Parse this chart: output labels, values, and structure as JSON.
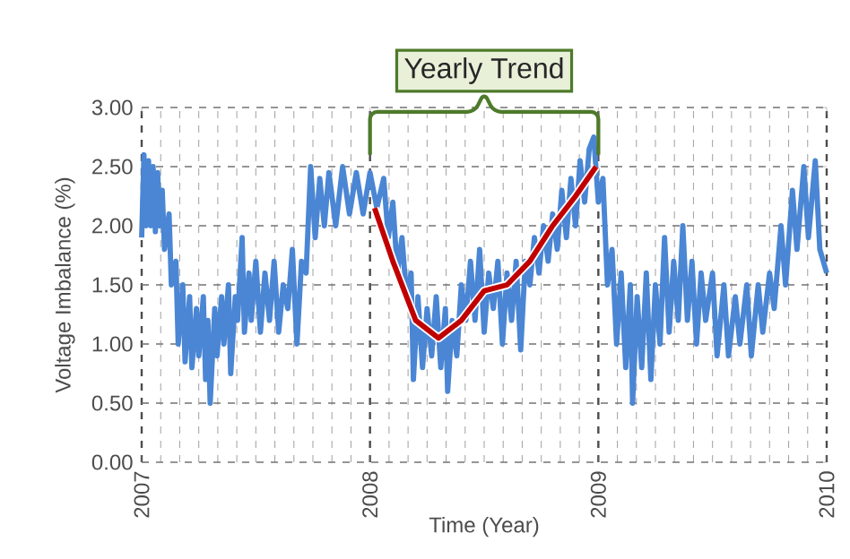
{
  "chart_data": {
    "type": "line",
    "xlabel": "Time (Year)",
    "ylabel": "Voltage Imbalance (%)",
    "xlim": [
      2007,
      2010
    ],
    "xticks": [
      2007,
      2008,
      2009,
      2010
    ],
    "ylim": [
      0,
      3
    ],
    "yticks": [
      {
        "value": 0,
        "label": "0.00"
      },
      {
        "value": 0.5,
        "label": "0.50"
      },
      {
        "value": 1,
        "label": "1.00"
      },
      {
        "value": 1.5,
        "label": "1.50"
      },
      {
        "value": 2,
        "label": "2.00"
      },
      {
        "value": 2.5,
        "label": "2.50"
      },
      {
        "value": 3,
        "label": "3.00"
      }
    ],
    "grid": true,
    "marker": "none",
    "annotations": [
      "Yearly Trend"
    ],
    "series": [
      {
        "color": "#4a86d4",
        "x": [
          2007.0,
          2007.01,
          2007.02,
          2007.03,
          2007.04,
          2007.05,
          2007.06,
          2007.07,
          2007.08,
          2007.09,
          2007.1,
          2007.12,
          2007.13,
          2007.15,
          2007.16,
          2007.18,
          2007.19,
          2007.21,
          2007.22,
          2007.24,
          2007.25,
          2007.27,
          2007.28,
          2007.29,
          2007.3,
          2007.32,
          2007.33,
          2007.35,
          2007.36,
          2007.38,
          2007.39,
          2007.41,
          2007.42,
          2007.44,
          2007.45,
          2007.47,
          2007.48,
          2007.5,
          2007.52,
          2007.54,
          2007.56,
          2007.58,
          2007.6,
          2007.62,
          2007.64,
          2007.66,
          2007.68,
          2007.7,
          2007.72,
          2007.74,
          2007.76,
          2007.78,
          2007.8,
          2007.82,
          2007.85,
          2007.88,
          2007.91,
          2007.94,
          2007.97,
          2008.0,
          2008.03,
          2008.06,
          2008.08,
          2008.1,
          2008.12,
          2008.14,
          2008.16,
          2008.18,
          2008.19,
          2008.21,
          2008.23,
          2008.25,
          2008.27,
          2008.29,
          2008.31,
          2008.33,
          2008.34,
          2008.36,
          2008.38,
          2008.4,
          2008.42,
          2008.44,
          2008.46,
          2008.48,
          2008.5,
          2008.52,
          2008.54,
          2008.56,
          2008.58,
          2008.6,
          2008.62,
          2008.64,
          2008.66,
          2008.68,
          2008.7,
          2008.72,
          2008.74,
          2008.76,
          2008.78,
          2008.8,
          2008.82,
          2008.84,
          2008.86,
          2008.88,
          2008.9,
          2008.92,
          2008.94,
          2008.96,
          2008.98,
          2009.0,
          2009.02,
          2009.04,
          2009.06,
          2009.08,
          2009.1,
          2009.12,
          2009.14,
          2009.15,
          2009.17,
          2009.19,
          2009.21,
          2009.23,
          2009.25,
          2009.27,
          2009.29,
          2009.31,
          2009.33,
          2009.35,
          2009.37,
          2009.39,
          2009.41,
          2009.43,
          2009.45,
          2009.47,
          2009.5,
          2009.52,
          2009.55,
          2009.57,
          2009.6,
          2009.62,
          2009.65,
          2009.67,
          2009.7,
          2009.72,
          2009.75,
          2009.77,
          2009.8,
          2009.82,
          2009.85,
          2009.87,
          2009.9,
          2009.92,
          2009.95,
          2009.97,
          2010.0
        ],
        "values": [
          1.9,
          2.6,
          2.0,
          2.55,
          2.0,
          2.5,
          1.95,
          2.45,
          2.0,
          2.3,
          1.8,
          2.1,
          1.5,
          1.7,
          1.0,
          1.5,
          0.85,
          1.4,
          0.8,
          1.3,
          0.9,
          1.4,
          0.7,
          1.2,
          0.5,
          1.3,
          0.9,
          1.4,
          1.0,
          1.5,
          0.75,
          1.4,
          1.2,
          1.9,
          1.1,
          1.6,
          1.2,
          1.7,
          1.1,
          1.6,
          1.2,
          1.7,
          1.1,
          1.5,
          1.3,
          1.8,
          1.0,
          1.7,
          1.6,
          2.5,
          1.9,
          2.4,
          2.0,
          2.45,
          2.0,
          2.5,
          2.1,
          2.45,
          2.1,
          2.45,
          2.15,
          2.4,
          1.9,
          2.2,
          1.6,
          1.9,
          1.4,
          1.6,
          0.7,
          1.4,
          0.8,
          1.3,
          0.9,
          1.4,
          0.8,
          1.3,
          0.6,
          1.2,
          0.9,
          1.5,
          1.2,
          1.7,
          1.2,
          1.8,
          1.1,
          1.6,
          1.3,
          1.7,
          1.0,
          1.6,
          1.2,
          1.7,
          0.95,
          1.7,
          1.5,
          1.9,
          1.6,
          2.0,
          1.7,
          2.1,
          1.8,
          2.3,
          1.9,
          2.4,
          2.0,
          2.55,
          2.2,
          2.65,
          2.75,
          2.2,
          2.4,
          1.5,
          1.8,
          1.0,
          1.6,
          0.8,
          1.5,
          0.5,
          1.4,
          0.8,
          1.6,
          0.7,
          1.5,
          1.0,
          1.9,
          1.1,
          1.7,
          1.2,
          2.0,
          1.2,
          1.7,
          1.0,
          1.6,
          1.2,
          1.6,
          0.9,
          1.5,
          0.9,
          1.4,
          1.0,
          1.5,
          0.9,
          1.5,
          1.1,
          1.6,
          1.3,
          2.0,
          1.5,
          2.3,
          1.8,
          2.5,
          1.9,
          2.55,
          1.8,
          1.6
        ]
      },
      {
        "type": "line",
        "color": "#c00000",
        "x": [
          2008.02,
          2008.1,
          2008.2,
          2008.3,
          2008.4,
          2008.5,
          2008.6,
          2008.7,
          2008.8,
          2008.9,
          2008.99
        ],
        "values": [
          2.15,
          1.7,
          1.2,
          1.05,
          1.2,
          1.45,
          1.5,
          1.7,
          2.0,
          2.25,
          2.5
        ]
      }
    ]
  }
}
